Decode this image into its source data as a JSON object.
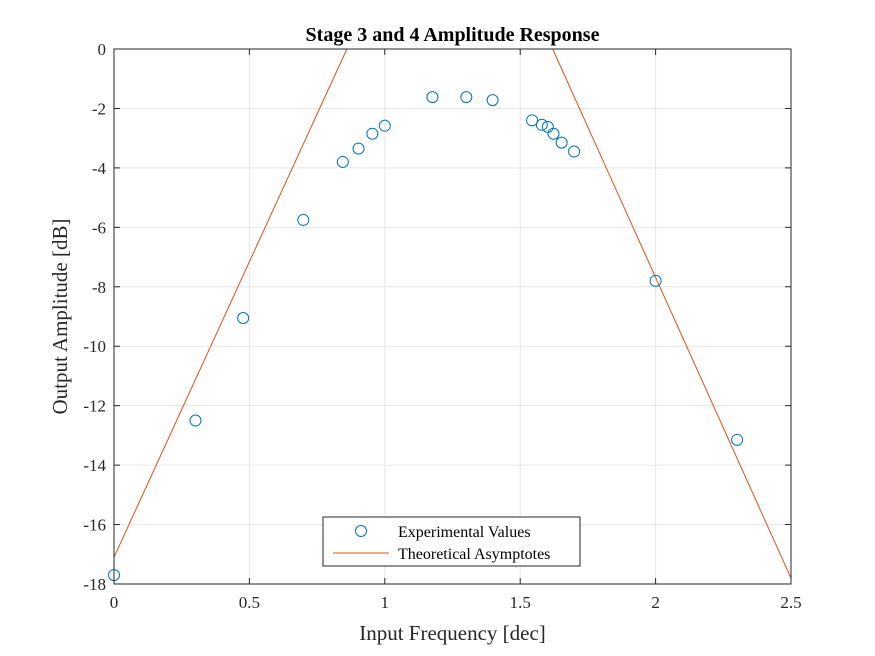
{
  "chart_data": {
    "type": "scatter",
    "title": "Stage 3 and 4 Amplitude Response",
    "xlabel": "Input Frequency [dec]",
    "ylabel": "Output Amplitude [dB]",
    "xlim": [
      0,
      2.5
    ],
    "ylim": [
      -18,
      0
    ],
    "xticks": [
      0,
      0.5,
      1,
      1.5,
      2,
      2.5
    ],
    "xtick_labels": [
      "0",
      "0.5",
      "1",
      "1.5",
      "2",
      "2.5"
    ],
    "yticks": [
      0,
      -2,
      -4,
      -6,
      -8,
      -10,
      -12,
      -14,
      -16,
      -18
    ],
    "ytick_labels": [
      "0",
      "-2",
      "-4",
      "-6",
      "-8",
      "-10",
      "-12",
      "-14",
      "-16",
      "-18"
    ],
    "grid": true,
    "legend_position": "bottom-center",
    "series": [
      {
        "name": "Experimental Values",
        "type": "scatter",
        "marker": "circle",
        "color": "#0072BD",
        "x": [
          0,
          0.301,
          0.477,
          0.699,
          0.845,
          0.903,
          0.954,
          1.0,
          1.176,
          1.301,
          1.398,
          1.544,
          1.58,
          1.602,
          1.623,
          1.653,
          1.699,
          2.0,
          2.301
        ],
        "y": [
          -17.7,
          -12.5,
          -9.05,
          -5.75,
          -3.8,
          -3.35,
          -2.85,
          -2.58,
          -1.62,
          -1.62,
          -1.72,
          -2.4,
          -2.55,
          -2.62,
          -2.85,
          -3.15,
          -3.45,
          -7.8,
          -13.15
        ]
      },
      {
        "name": "Theoretical Asymptotes",
        "type": "line",
        "color": "#D95319",
        "x": [
          0,
          0.86,
          1.62,
          2.5
        ],
        "y": [
          -17.1,
          0,
          0,
          -17.8
        ]
      }
    ]
  },
  "colors": {
    "axis": "#262626",
    "grid": "#e6e6e6",
    "experimental": "#0072BD",
    "theoretical": "#D95319"
  }
}
